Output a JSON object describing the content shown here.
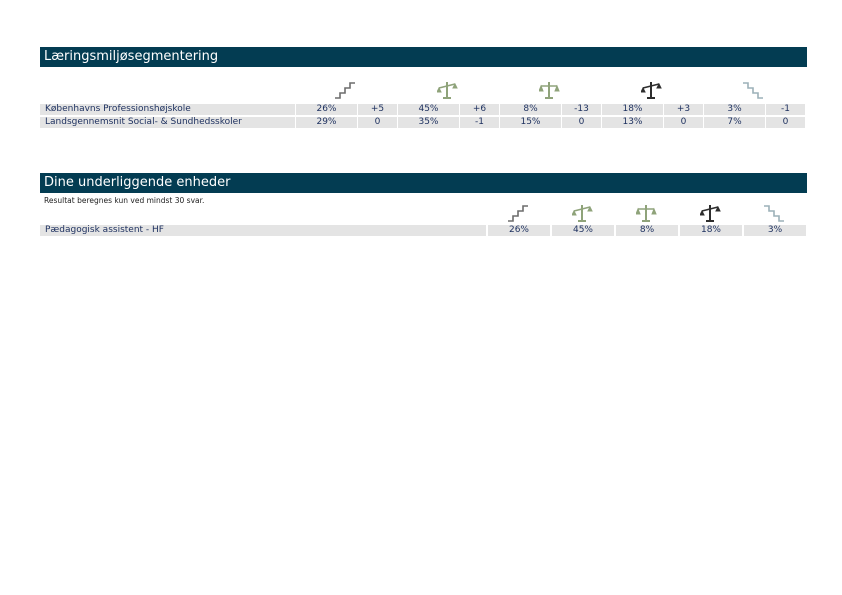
{
  "sections": [
    {
      "title": "Læringsmiljøsegmentering",
      "rows": [
        {
          "label": "Københavns Professionshøjskole",
          "cells": [
            "26%",
            "+5",
            "45%",
            "+6",
            "8%",
            "-13",
            "18%",
            "+3",
            "3%",
            "-1"
          ]
        },
        {
          "label": "Landsgennemsnit Social- & Sundhedsskoler",
          "cells": [
            "29%",
            "0",
            "35%",
            "-1",
            "15%",
            "0",
            "13%",
            "0",
            "7%",
            "0"
          ]
        }
      ]
    },
    {
      "title": "Dine underliggende enheder",
      "note": "Resultat beregnes kun ved mindst 30 svar.",
      "rows": [
        {
          "label": "Pædagogisk assistent - HF",
          "cells": [
            "26%",
            "45%",
            "8%",
            "18%",
            "3%"
          ]
        }
      ]
    }
  ]
}
